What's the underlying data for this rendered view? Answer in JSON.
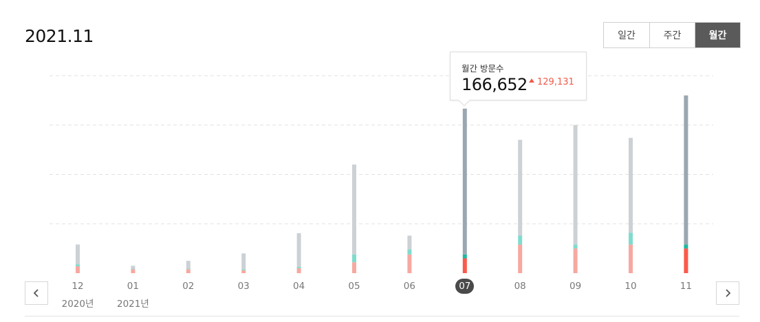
{
  "header": {
    "title": "2021.11"
  },
  "period_buttons": [
    {
      "label": "일간",
      "active": false
    },
    {
      "label": "주간",
      "active": false
    },
    {
      "label": "월간",
      "active": true
    }
  ],
  "tooltip": {
    "label": "월간 방문수",
    "value": "166,652",
    "change": "129,131",
    "change_direction": "up"
  },
  "colors": {
    "total_selected": "#9ba7b0",
    "total": "#ccd1d5",
    "mid": "#7fdccd",
    "mid_selected": "#1fb8a3",
    "bottom": "#f7a8a0",
    "bottom_selected": "#fa5a4c",
    "grid": "#e2e2e2",
    "accent_down": "#f05a4a"
  },
  "chart_data": {
    "type": "bar",
    "stacked": true,
    "categories": [
      "12",
      "01",
      "02",
      "03",
      "04",
      "05",
      "06",
      "07",
      "08",
      "09",
      "10",
      "11"
    ],
    "year_labels": [
      {
        "index": 0,
        "label": "2020년"
      },
      {
        "index": 1,
        "label": "2021년"
      }
    ],
    "selected_index": 7,
    "series": [
      {
        "values": [
          7000,
          4000,
          4000,
          3000,
          5000,
          11000,
          19000,
          15000,
          29000,
          25000,
          29000,
          25000
        ]
      },
      {
        "values": [
          2000,
          500,
          500,
          1000,
          1500,
          8000,
          5000,
          4000,
          9000,
          4000,
          12000,
          4000
        ]
      },
      {
        "values": [
          20000,
          3000,
          8000,
          16000,
          34000,
          91000,
          14000,
          147652,
          97000,
          121000,
          96000,
          151000
        ]
      }
    ],
    "ylim": [
      0,
      200000
    ],
    "grid": true,
    "grid_style": "dashed"
  }
}
